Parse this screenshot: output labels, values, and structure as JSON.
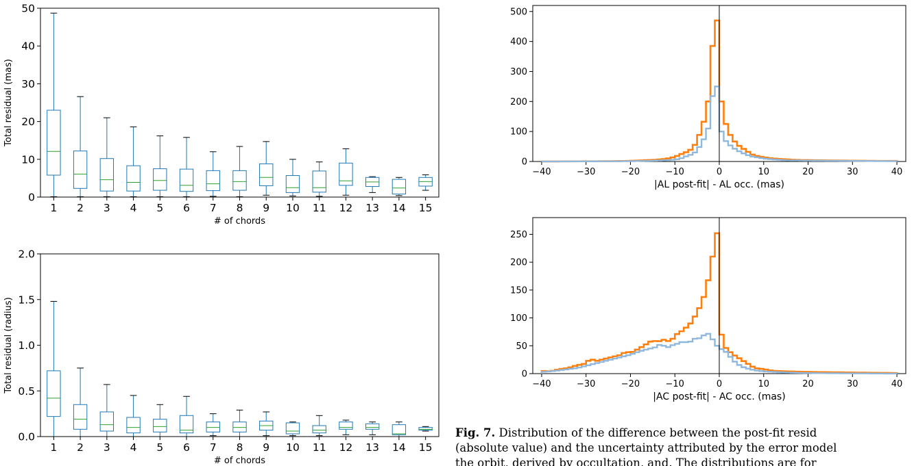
{
  "chart_data": [
    {
      "type": "box",
      "xlabel": "# of chords",
      "ylabel": "Total residual (mas)",
      "ylim": [
        0,
        50
      ],
      "yticks": [
        "0",
        "10",
        "20",
        "30",
        "40",
        "50"
      ],
      "categories": [
        "1",
        "2",
        "3",
        "4",
        "5",
        "6",
        "7",
        "8",
        "9",
        "10",
        "11",
        "12",
        "13",
        "14",
        "15"
      ],
      "boxes": [
        {
          "whislo": 0.1,
          "q1": 5.8,
          "med": 12.1,
          "q3": 23.0,
          "whishi": 48.7
        },
        {
          "whislo": 0.1,
          "q1": 2.3,
          "med": 6.1,
          "q3": 12.2,
          "whishi": 26.6
        },
        {
          "whislo": 0.1,
          "q1": 1.6,
          "med": 4.6,
          "q3": 10.2,
          "whishi": 21.0
        },
        {
          "whislo": 0.1,
          "q1": 1.6,
          "med": 3.9,
          "q3": 8.3,
          "whishi": 18.6
        },
        {
          "whislo": 0.1,
          "q1": 1.8,
          "med": 4.4,
          "q3": 7.5,
          "whishi": 16.2
        },
        {
          "whislo": 0.1,
          "q1": 1.5,
          "med": 3.1,
          "q3": 7.4,
          "whishi": 15.8
        },
        {
          "whislo": 0.2,
          "q1": 1.7,
          "med": 3.5,
          "q3": 7.0,
          "whishi": 12.0
        },
        {
          "whislo": 0.1,
          "q1": 1.8,
          "med": 4.1,
          "q3": 7.0,
          "whishi": 13.4
        },
        {
          "whislo": 0.5,
          "q1": 3.0,
          "med": 5.2,
          "q3": 8.8,
          "whishi": 14.7
        },
        {
          "whislo": 0.3,
          "q1": 1.2,
          "med": 2.5,
          "q3": 5.7,
          "whishi": 10.0
        },
        {
          "whislo": 0.2,
          "q1": 1.3,
          "med": 2.5,
          "q3": 6.9,
          "whishi": 9.3
        },
        {
          "whislo": 0.5,
          "q1": 3.1,
          "med": 4.3,
          "q3": 9.0,
          "whishi": 12.8
        },
        {
          "whislo": 1.2,
          "q1": 2.8,
          "med": 4.0,
          "q3": 5.2,
          "whishi": 5.4
        },
        {
          "whislo": 0.4,
          "q1": 0.8,
          "med": 2.4,
          "q3": 4.7,
          "whishi": 5.2
        },
        {
          "whislo": 1.8,
          "q1": 2.9,
          "med": 4.1,
          "q3": 5.2,
          "whishi": 5.9
        }
      ]
    },
    {
      "type": "box",
      "xlabel": "# of chords",
      "ylabel": "Total residual (radius)",
      "ylim": [
        0,
        2.0
      ],
      "yticks": [
        "0.0",
        "0.5",
        "1.0",
        "1.5",
        "2.0"
      ],
      "categories": [
        "1",
        "2",
        "3",
        "4",
        "5",
        "6",
        "7",
        "8",
        "9",
        "10",
        "11",
        "12",
        "13",
        "14",
        "15"
      ],
      "boxes": [
        {
          "whislo": 0.0,
          "q1": 0.22,
          "med": 0.42,
          "q3": 0.72,
          "whishi": 1.48
        },
        {
          "whislo": 0.0,
          "q1": 0.08,
          "med": 0.19,
          "q3": 0.35,
          "whishi": 0.75
        },
        {
          "whislo": 0.0,
          "q1": 0.06,
          "med": 0.13,
          "q3": 0.27,
          "whishi": 0.57
        },
        {
          "whislo": 0.0,
          "q1": 0.04,
          "med": 0.1,
          "q3": 0.21,
          "whishi": 0.45
        },
        {
          "whislo": 0.0,
          "q1": 0.05,
          "med": 0.11,
          "q3": 0.19,
          "whishi": 0.35
        },
        {
          "whislo": 0.0,
          "q1": 0.04,
          "med": 0.07,
          "q3": 0.23,
          "whishi": 0.44
        },
        {
          "whislo": 0.01,
          "q1": 0.05,
          "med": 0.1,
          "q3": 0.16,
          "whishi": 0.25
        },
        {
          "whislo": 0.0,
          "q1": 0.05,
          "med": 0.1,
          "q3": 0.16,
          "whishi": 0.29
        },
        {
          "whislo": 0.01,
          "q1": 0.07,
          "med": 0.12,
          "q3": 0.17,
          "whishi": 0.27
        },
        {
          "whislo": 0.01,
          "q1": 0.03,
          "med": 0.06,
          "q3": 0.15,
          "whishi": 0.16
        },
        {
          "whislo": 0.01,
          "q1": 0.04,
          "med": 0.07,
          "q3": 0.12,
          "whishi": 0.23
        },
        {
          "whislo": 0.02,
          "q1": 0.08,
          "med": 0.1,
          "q3": 0.16,
          "whishi": 0.18
        },
        {
          "whislo": 0.02,
          "q1": 0.08,
          "med": 0.1,
          "q3": 0.14,
          "whishi": 0.16
        },
        {
          "whislo": 0.0,
          "q1": 0.02,
          "med": 0.03,
          "q3": 0.13,
          "whishi": 0.16
        },
        {
          "whislo": 0.06,
          "q1": 0.07,
          "med": 0.08,
          "q3": 0.1,
          "whishi": 0.11
        }
      ]
    },
    {
      "type": "step-histogram",
      "xlabel": "|AL post-fit| - AL occ. (mas)",
      "ylabel": "",
      "xlim": [
        -42,
        42
      ],
      "ylim": [
        0,
        520
      ],
      "xticks": [
        -40,
        -30,
        -20,
        -10,
        0,
        10,
        20,
        30,
        40
      ],
      "yticks": [
        0,
        100,
        200,
        300,
        400,
        500
      ],
      "vline": 0,
      "series": [
        {
          "color": "#ff7f0e",
          "points": [
            [
              -40,
              0
            ],
            [
              -25,
              1
            ],
            [
              -20,
              2
            ],
            [
              -17,
              4
            ],
            [
              -14,
              6
            ],
            [
              -12,
              9
            ],
            [
              -10,
              15
            ],
            [
              -9,
              22
            ],
            [
              -8,
              28
            ],
            [
              -7,
              34
            ],
            [
              -6,
              44
            ],
            [
              -5,
              67
            ],
            [
              -4,
              110
            ],
            [
              -3,
              155
            ],
            [
              -2.5,
              200
            ],
            [
              -2,
              298
            ],
            [
              -1.5,
              385
            ],
            [
              -1,
              465
            ],
            [
              -0.5,
              470
            ],
            [
              0,
              310
            ],
            [
              0.5,
              200
            ],
            [
              1,
              148
            ],
            [
              2,
              102
            ],
            [
              3,
              75
            ],
            [
              4,
              58
            ],
            [
              5,
              46
            ],
            [
              6,
              38
            ],
            [
              7,
              26
            ],
            [
              8,
              20
            ],
            [
              10,
              14
            ],
            [
              12,
              10
            ],
            [
              15,
              7
            ],
            [
              18,
              5
            ],
            [
              22,
              4
            ],
            [
              28,
              3
            ],
            [
              35,
              2
            ],
            [
              40,
              2
            ]
          ]
        },
        {
          "color": "#90b8dc",
          "points": [
            [
              -40,
              0
            ],
            [
              -20,
              1
            ],
            [
              -14,
              3
            ],
            [
              -11,
              5
            ],
            [
              -9,
              8
            ],
            [
              -8,
              14
            ],
            [
              -7,
              20
            ],
            [
              -6,
              24
            ],
            [
              -5,
              36
            ],
            [
              -4,
              60
            ],
            [
              -3,
              88
            ],
            [
              -2.5,
              110
            ],
            [
              -2,
              145
            ],
            [
              -1.5,
              218
            ],
            [
              -1,
              245
            ],
            [
              -0.5,
              250
            ],
            [
              0,
              150
            ],
            [
              0.5,
              100
            ],
            [
              1,
              76
            ],
            [
              2,
              60
            ],
            [
              3,
              47
            ],
            [
              4,
              38
            ],
            [
              5,
              30
            ],
            [
              6,
              24
            ],
            [
              7,
              18
            ],
            [
              8,
              15
            ],
            [
              10,
              10
            ],
            [
              12,
              7
            ],
            [
              15,
              4
            ],
            [
              20,
              3
            ],
            [
              30,
              2
            ],
            [
              40,
              1
            ]
          ]
        }
      ]
    },
    {
      "type": "step-histogram",
      "xlabel": "|AC post-fit| - AC occ. (mas)",
      "ylabel": "",
      "xlim": [
        -42,
        42
      ],
      "ylim": [
        0,
        280
      ],
      "xticks": [
        -40,
        -30,
        -20,
        -10,
        0,
        10,
        20,
        30,
        40
      ],
      "yticks": [
        0,
        50,
        100,
        150,
        200,
        250
      ],
      "vline": 0,
      "series": [
        {
          "color": "#ff7f0e",
          "points": [
            [
              -40,
              5
            ],
            [
              -38,
              4
            ],
            [
              -36,
              8
            ],
            [
              -34,
              10
            ],
            [
              -32,
              15
            ],
            [
              -30,
              18
            ],
            [
              -29,
              28
            ],
            [
              -28,
              22
            ],
            [
              -26,
              26
            ],
            [
              -24,
              30
            ],
            [
              -22,
              34
            ],
            [
              -21,
              40
            ],
            [
              -20,
              37
            ],
            [
              -18,
              45
            ],
            [
              -16,
              55
            ],
            [
              -15,
              60
            ],
            [
              -14,
              57
            ],
            [
              -12,
              62
            ],
            [
              -11,
              55
            ],
            [
              -10,
              70
            ],
            [
              -9,
              72
            ],
            [
              -8,
              80
            ],
            [
              -7,
              85
            ],
            [
              -6,
              95
            ],
            [
              -5,
              110
            ],
            [
              -4,
              125
            ],
            [
              -3,
              150
            ],
            [
              -2,
              185
            ],
            [
              -1.5,
              210
            ],
            [
              -1,
              255
            ],
            [
              -0.5,
              252
            ],
            [
              0,
              170
            ],
            [
              0.5,
              70
            ],
            [
              1,
              50
            ],
            [
              2,
              42
            ],
            [
              3,
              35
            ],
            [
              4,
              30
            ],
            [
              5,
              25
            ],
            [
              6,
              20
            ],
            [
              7,
              15
            ],
            [
              8,
              10
            ],
            [
              10,
              8
            ],
            [
              12,
              5
            ],
            [
              15,
              4
            ],
            [
              20,
              3
            ],
            [
              30,
              2
            ],
            [
              40,
              1
            ]
          ]
        },
        {
          "color": "#90b8dc",
          "points": [
            [
              -40,
              3
            ],
            [
              -38,
              4
            ],
            [
              -36,
              6
            ],
            [
              -34,
              8
            ],
            [
              -32,
              10
            ],
            [
              -30,
              14
            ],
            [
              -28,
              18
            ],
            [
              -26,
              22
            ],
            [
              -24,
              26
            ],
            [
              -22,
              30
            ],
            [
              -20,
              34
            ],
            [
              -18,
              40
            ],
            [
              -16,
              44
            ],
            [
              -14,
              48
            ],
            [
              -13,
              55
            ],
            [
              -12,
              45
            ],
            [
              -11,
              50
            ],
            [
              -10,
              52
            ],
            [
              -9,
              55
            ],
            [
              -8,
              58
            ],
            [
              -7,
              55
            ],
            [
              -6,
              60
            ],
            [
              -5,
              65
            ],
            [
              -4,
              62
            ],
            [
              -3,
              75
            ],
            [
              -2,
              68
            ],
            [
              -1,
              55
            ],
            [
              0,
              45
            ],
            [
              1,
              43
            ],
            [
              2,
              35
            ],
            [
              3,
              25
            ],
            [
              4,
              18
            ],
            [
              5,
              13
            ],
            [
              6,
              10
            ],
            [
              8,
              6
            ],
            [
              10,
              4
            ],
            [
              15,
              2
            ],
            [
              20,
              1
            ],
            [
              40,
              0
            ]
          ]
        }
      ]
    }
  ],
  "caption": {
    "label": "Fig. 7.",
    "line1": " Distribution of the difference between the post-fit resid",
    "line2": "(absolute value) and the uncertainty attributed by the error model",
    "line3": "the orbit, derived by occultation, and. The distributions are for"
  }
}
